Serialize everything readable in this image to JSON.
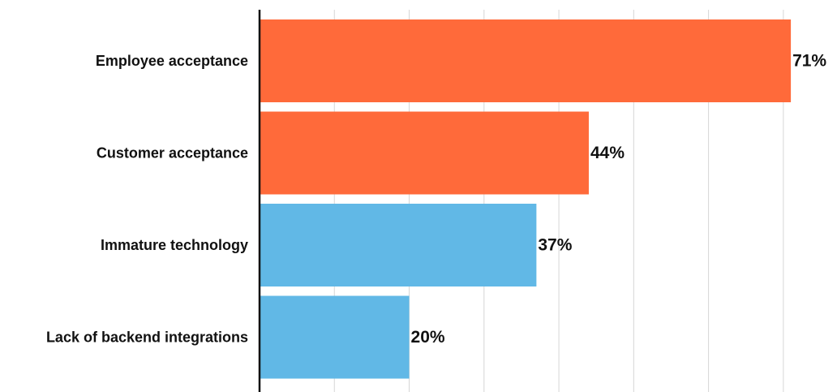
{
  "chart_data": {
    "type": "bar",
    "orientation": "horizontal",
    "categories": [
      "Employee acceptance",
      "Customer acceptance",
      "Immature technology",
      "Lack of backend integrations"
    ],
    "values": [
      71,
      44,
      37,
      20
    ],
    "value_labels": [
      "71%",
      "44%",
      "37%",
      "20%"
    ],
    "bar_colors": [
      "#ff6a3a",
      "#ff6a3a",
      "#61b8e6",
      "#61b8e6"
    ],
    "xlim": [
      0,
      75
    ],
    "grid_step": 10,
    "grid": true,
    "legend": "none",
    "title": "",
    "xlabel": "",
    "ylabel": ""
  }
}
